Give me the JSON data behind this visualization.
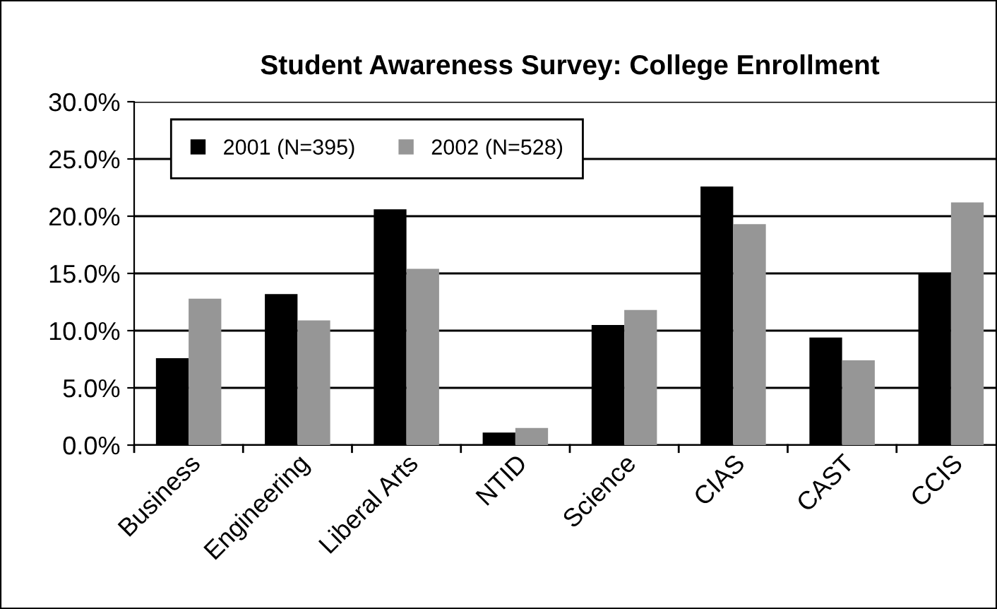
{
  "chart_data": {
    "type": "bar",
    "title": "Student Awareness Survey: College Enrollment",
    "categories": [
      "Business",
      "Engineering",
      "Liberal Arts",
      "NTID",
      "Science",
      "CIAS",
      "CAST",
      "CCIS"
    ],
    "series": [
      {
        "name": "2001 (N=395)",
        "color": "#000000",
        "values": [
          7.6,
          13.2,
          20.6,
          1.1,
          10.5,
          22.6,
          9.4,
          15.0
        ]
      },
      {
        "name": "2002 (N=528)",
        "color": "#969696",
        "values": [
          12.8,
          10.9,
          15.4,
          1.5,
          11.8,
          19.3,
          7.4,
          21.2
        ]
      }
    ],
    "ylim": [
      0,
      30
    ],
    "yticks": [
      {
        "value": 0,
        "label": "0.0%"
      },
      {
        "value": 5,
        "label": "5.0%"
      },
      {
        "value": 10,
        "label": "10.0%"
      },
      {
        "value": 15,
        "label": "15.0%"
      },
      {
        "value": 20,
        "label": "20.0%"
      },
      {
        "value": 25,
        "label": "25.0%"
      },
      {
        "value": 30,
        "label": "30.0%"
      }
    ],
    "grid": "y",
    "legend": "top left"
  }
}
